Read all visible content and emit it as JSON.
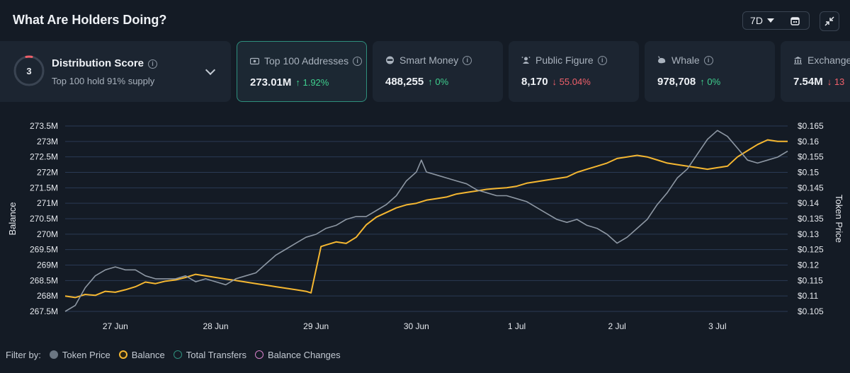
{
  "header": {
    "title": "What Are Holders Doing?",
    "range": "7D"
  },
  "distribution": {
    "score": "3",
    "title": "Distribution Score",
    "subtitle": "Top 100 hold 91% supply"
  },
  "cards": [
    {
      "label": "Top 100 Addresses",
      "value": "273.01M",
      "change": "↑ 1.92%",
      "direction": "up",
      "icon": "wallet-icon"
    },
    {
      "label": "Smart Money",
      "value": "488,255",
      "change": "↑ 0%",
      "direction": "up",
      "icon": "smart-money-icon"
    },
    {
      "label": "Public Figure",
      "value": "8,170",
      "change": "↓ 55.04%",
      "direction": "down",
      "icon": "public-figure-icon"
    },
    {
      "label": "Whale",
      "value": "978,708",
      "change": "↑ 0%",
      "direction": "up",
      "icon": "whale-icon"
    },
    {
      "label": "Exchange",
      "value": "7.54M",
      "change": "↓ 13",
      "direction": "down",
      "icon": "exchange-icon"
    }
  ],
  "legend": {
    "filter_label": "Filter by:",
    "items": [
      {
        "label": "Token Price",
        "color": "#6b7682"
      },
      {
        "label": "Balance",
        "color": "#f5b731"
      },
      {
        "label": "Total Transfers",
        "color": "#2e8f7d"
      },
      {
        "label": "Balance Changes",
        "color": "#d680c9"
      }
    ]
  },
  "colors": {
    "balance": "#f5b731",
    "price": "#8d97a3",
    "accent": "#2e8f7d",
    "grid": "#2a3a55"
  },
  "chart_data": {
    "type": "line",
    "ylabel": "Balance",
    "y2label": "Token Price",
    "ylim": [
      267500000,
      273500000
    ],
    "y2lim": [
      0.105,
      0.1675
    ],
    "y_ticks": [
      "267.5M",
      "268M",
      "268.5M",
      "269M",
      "269.5M",
      "270M",
      "270.5M",
      "271M",
      "271.5M",
      "272M",
      "272.5M",
      "273M",
      "273.5M"
    ],
    "y2_ticks": [
      "$0.105",
      "$0.11",
      "$0.115",
      "$0.12",
      "$0.125",
      "$0.13",
      "$0.135",
      "$0.14",
      "$0.145",
      "$0.15",
      "$0.155",
      "$0.16",
      "$0.165"
    ],
    "x_ticks": [
      {
        "label": "27 Jun",
        "x": 0.5
      },
      {
        "label": "28 Jun",
        "x": 1.5
      },
      {
        "label": "29 Jun",
        "x": 2.5
      },
      {
        "label": "30 Jun",
        "x": 3.5
      },
      {
        "label": "1 Jul",
        "x": 4.5
      },
      {
        "label": "2 Jul",
        "x": 5.5
      },
      {
        "label": "3 Jul",
        "x": 6.5
      }
    ],
    "xlim": [
      0,
      7.2
    ],
    "grid": true,
    "series": [
      {
        "name": "Balance",
        "axis": "left",
        "x": [
          0,
          0.1,
          0.2,
          0.3,
          0.4,
          0.5,
          0.6,
          0.7,
          0.8,
          0.9,
          1.0,
          1.1,
          1.2,
          1.3,
          1.4,
          1.5,
          1.6,
          1.7,
          1.8,
          1.9,
          2.0,
          2.1,
          2.2,
          2.3,
          2.4,
          2.45,
          2.55,
          2.6,
          2.7,
          2.8,
          2.9,
          3.0,
          3.1,
          3.2,
          3.3,
          3.4,
          3.5,
          3.6,
          3.7,
          3.8,
          3.9,
          4.0,
          4.1,
          4.2,
          4.3,
          4.4,
          4.5,
          4.6,
          4.7,
          4.8,
          4.9,
          5.0,
          5.1,
          5.2,
          5.3,
          5.4,
          5.5,
          5.6,
          5.7,
          5.8,
          5.9,
          6.0,
          6.1,
          6.2,
          6.3,
          6.4,
          6.5,
          6.6,
          6.7,
          6.8,
          6.9,
          7.0,
          7.1,
          7.2
        ],
        "values": [
          268000000,
          267950000,
          268050000,
          268020000,
          268150000,
          268120000,
          268200000,
          268300000,
          268450000,
          268400000,
          268480000,
          268520000,
          268600000,
          268700000,
          268650000,
          268600000,
          268550000,
          268500000,
          268450000,
          268400000,
          268350000,
          268300000,
          268250000,
          268200000,
          268150000,
          268100000,
          269600000,
          269650000,
          269750000,
          269700000,
          269900000,
          270300000,
          270550000,
          270700000,
          270850000,
          270950000,
          271000000,
          271100000,
          271150000,
          271200000,
          271300000,
          271350000,
          271400000,
          271450000,
          271480000,
          271500000,
          271550000,
          271650000,
          271700000,
          271750000,
          271800000,
          271850000,
          272000000,
          272100000,
          272200000,
          272300000,
          272450000,
          272500000,
          272550000,
          272500000,
          272400000,
          272300000,
          272250000,
          272200000,
          272150000,
          272100000,
          272150000,
          272200000,
          272500000,
          272700000,
          272900000,
          273050000,
          273000000,
          273000000
        ]
      },
      {
        "name": "Token Price",
        "axis": "right",
        "x": [
          0,
          0.1,
          0.2,
          0.3,
          0.4,
          0.5,
          0.6,
          0.7,
          0.8,
          0.9,
          1.0,
          1.1,
          1.2,
          1.3,
          1.4,
          1.5,
          1.6,
          1.7,
          1.8,
          1.9,
          2.0,
          2.1,
          2.2,
          2.3,
          2.4,
          2.5,
          2.6,
          2.7,
          2.8,
          2.9,
          3.0,
          3.1,
          3.2,
          3.3,
          3.4,
          3.5,
          3.55,
          3.6,
          3.7,
          3.8,
          3.9,
          4.0,
          4.1,
          4.2,
          4.3,
          4.4,
          4.5,
          4.6,
          4.7,
          4.8,
          4.9,
          5.0,
          5.1,
          5.2,
          5.3,
          5.4,
          5.5,
          5.6,
          5.7,
          5.8,
          5.9,
          6.0,
          6.1,
          6.2,
          6.3,
          6.4,
          6.5,
          6.6,
          6.7,
          6.8,
          6.9,
          7.0,
          7.1,
          7.2
        ],
        "values": [
          0.105,
          0.107,
          0.113,
          0.117,
          0.119,
          0.12,
          0.119,
          0.119,
          0.117,
          0.116,
          0.116,
          0.116,
          0.117,
          0.115,
          0.116,
          0.115,
          0.114,
          0.116,
          0.117,
          0.118,
          0.121,
          0.124,
          0.126,
          0.128,
          0.13,
          0.131,
          0.133,
          0.134,
          0.136,
          0.137,
          0.137,
          0.139,
          0.141,
          0.144,
          0.149,
          0.152,
          0.156,
          0.152,
          0.151,
          0.15,
          0.149,
          0.148,
          0.146,
          0.145,
          0.144,
          0.144,
          0.143,
          0.142,
          0.14,
          0.138,
          0.136,
          0.135,
          0.136,
          0.134,
          0.133,
          0.131,
          0.128,
          0.13,
          0.133,
          0.136,
          0.141,
          0.145,
          0.15,
          0.153,
          0.158,
          0.163,
          0.166,
          0.164,
          0.16,
          0.156,
          0.155,
          0.156,
          0.157,
          0.159
        ]
      }
    ]
  }
}
